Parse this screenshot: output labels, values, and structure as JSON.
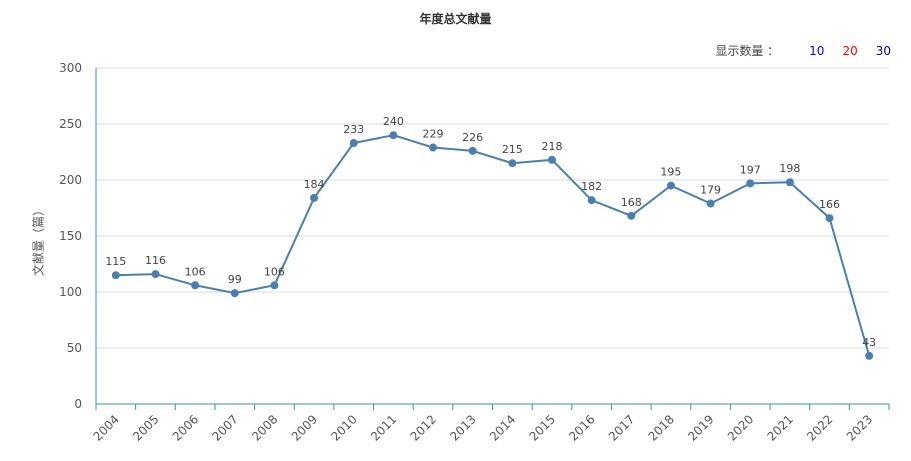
{
  "title": "年度总文献量",
  "display_count": {
    "label": "显示数量 ：",
    "options": [
      {
        "label": "10",
        "color": "#0000ff"
      },
      {
        "label": "20",
        "color": "#ff0000"
      },
      {
        "label": "30",
        "color": "#0000aa"
      }
    ]
  },
  "colors": {
    "line": "#4a7fb0",
    "axis": "#3a8fb7",
    "grid": "#d9d9d9",
    "text": "#555555"
  },
  "chart_data": {
    "type": "line",
    "title": "年度总文献量",
    "xlabel": "",
    "ylabel": "文献量（篇）",
    "ylim": [
      0,
      300
    ],
    "yticks": [
      0,
      50,
      100,
      150,
      200,
      250,
      300
    ],
    "grid": true,
    "categories": [
      "2004",
      "2005",
      "2006",
      "2007",
      "2008",
      "2009",
      "2010",
      "2011",
      "2012",
      "2013",
      "2014",
      "2015",
      "2016",
      "2017",
      "2018",
      "2019",
      "2020",
      "2021",
      "2022",
      "2023"
    ],
    "series": [
      {
        "values": [
          115,
          116,
          106,
          99,
          106,
          184,
          233,
          240,
          229,
          226,
          215,
          218,
          182,
          168,
          195,
          179,
          197,
          198,
          166,
          43
        ]
      }
    ]
  }
}
